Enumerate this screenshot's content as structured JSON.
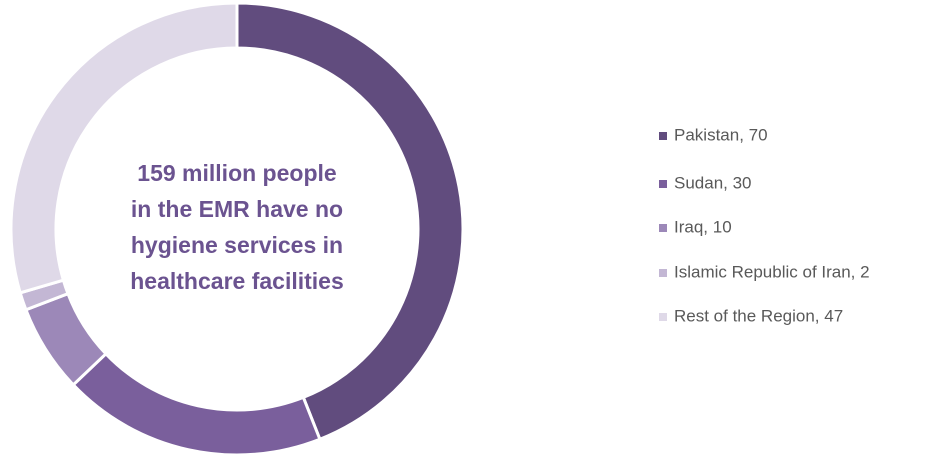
{
  "chart_data": {
    "type": "donut",
    "categories": [
      "Pakistan, 70",
      "Sudan, 30",
      "Iraq, 10",
      "Islamic Republic of Iran, 2",
      "Rest of the Region, 47"
    ],
    "values": [
      70,
      30,
      10,
      2,
      47
    ],
    "colors": [
      "#614c7e",
      "#7a5f9c",
      "#9c88b8",
      "#c3b7d4",
      "#dfd9e8"
    ],
    "annotation": [
      "159 million people",
      "in the EMR have no",
      "hygiene services in",
      "healthcare facilities"
    ],
    "legend": "right"
  }
}
